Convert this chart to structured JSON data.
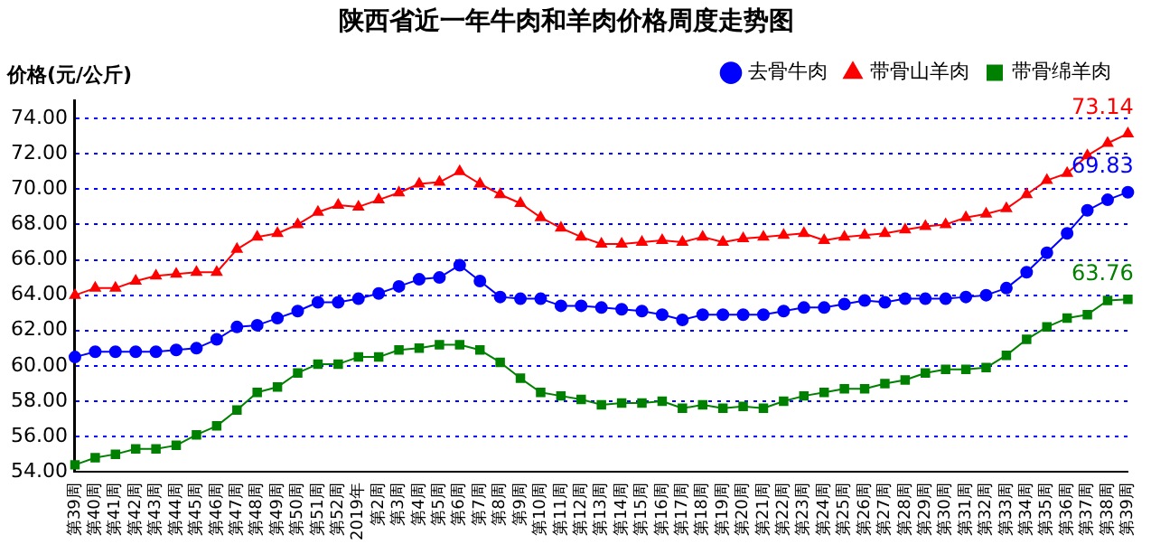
{
  "chart_data": {
    "type": "line",
    "title": "陕西省近一年牛肉和羊肉价格周度走势图",
    "ylabel": "价格(元/公斤)",
    "categories": [
      "第39周",
      "第40周",
      "第41周",
      "第42周",
      "第43周",
      "第44周",
      "第45周",
      "第46周",
      "第47周",
      "第48周",
      "第49周",
      "第50周",
      "第51周",
      "第52周",
      "2019年",
      "第2周",
      "第3周",
      "第4周",
      "第5周",
      "第6周",
      "第7周",
      "第8周",
      "第9周",
      "第10周",
      "第11周",
      "第12周",
      "第13周",
      "第14周",
      "第15周",
      "第16周",
      "第17周",
      "第18周",
      "第19周",
      "第20周",
      "第21周",
      "第22周",
      "第23周",
      "第24周",
      "第25周",
      "第26周",
      "第27周",
      "第28周",
      "第29周",
      "第30周",
      "第31周",
      "第32周",
      "第33周",
      "第34周",
      "第35周",
      "第36周",
      "第37周",
      "第38周",
      "第39周"
    ],
    "series": [
      {
        "name": "去骨牛肉",
        "color": "#0000ff",
        "marker": "circle",
        "values": [
          60.5,
          60.8,
          60.8,
          60.8,
          60.8,
          60.9,
          61.0,
          61.5,
          62.2,
          62.3,
          62.7,
          63.1,
          63.6,
          63.6,
          63.8,
          64.1,
          64.5,
          64.9,
          65.0,
          65.7,
          64.8,
          63.9,
          63.8,
          63.8,
          63.4,
          63.4,
          63.3,
          63.2,
          63.1,
          62.9,
          62.6,
          62.9,
          62.9,
          62.9,
          62.9,
          63.1,
          63.3,
          63.3,
          63.5,
          63.7,
          63.6,
          63.8,
          63.8,
          63.8,
          63.9,
          64.0,
          64.4,
          65.3,
          66.4,
          67.5,
          68.8,
          69.4,
          69.83
        ],
        "value_labels": [
          null,
          null,
          null,
          null,
          null,
          null,
          null,
          null,
          null,
          null,
          null,
          null,
          null,
          null,
          null,
          null,
          null,
          null,
          null,
          null,
          null,
          null,
          null,
          null,
          null,
          null,
          null,
          null,
          null,
          null,
          null,
          null,
          null,
          null,
          null,
          null,
          null,
          null,
          null,
          null,
          null,
          null,
          null,
          null,
          null,
          null,
          null,
          null,
          null,
          null,
          null,
          null,
          "69.83"
        ]
      },
      {
        "name": "带骨山羊肉",
        "color": "#ff0000",
        "marker": "triangle",
        "values": [
          64.0,
          64.4,
          64.4,
          64.8,
          65.1,
          65.2,
          65.3,
          65.3,
          66.6,
          67.3,
          67.5,
          68.0,
          68.7,
          69.1,
          69.0,
          69.4,
          69.8,
          70.3,
          70.4,
          71.0,
          70.3,
          69.7,
          69.2,
          68.4,
          67.8,
          67.3,
          66.9,
          66.9,
          67.0,
          67.1,
          67.0,
          67.3,
          67.0,
          67.2,
          67.3,
          67.4,
          67.5,
          67.1,
          67.3,
          67.4,
          67.5,
          67.7,
          67.9,
          68.0,
          68.4,
          68.6,
          68.9,
          69.7,
          70.5,
          70.9,
          71.9,
          72.6,
          73.14
        ],
        "value_labels": [
          null,
          null,
          null,
          null,
          null,
          null,
          null,
          null,
          null,
          null,
          null,
          null,
          null,
          null,
          null,
          null,
          null,
          null,
          null,
          null,
          null,
          null,
          null,
          null,
          null,
          null,
          null,
          null,
          null,
          null,
          null,
          null,
          null,
          null,
          null,
          null,
          null,
          null,
          null,
          null,
          null,
          null,
          null,
          null,
          null,
          null,
          null,
          null,
          null,
          null,
          null,
          null,
          "73.14"
        ]
      },
      {
        "name": "带骨绵羊肉",
        "color": "#008000",
        "marker": "square",
        "values": [
          54.4,
          54.8,
          55.0,
          55.3,
          55.3,
          55.5,
          56.1,
          56.6,
          57.5,
          58.5,
          58.8,
          59.6,
          60.1,
          60.1,
          60.5,
          60.5,
          60.9,
          61.0,
          61.2,
          61.2,
          60.9,
          60.2,
          59.3,
          58.5,
          58.3,
          58.1,
          57.8,
          57.9,
          57.9,
          58.0,
          57.6,
          57.8,
          57.6,
          57.7,
          57.6,
          58.0,
          58.3,
          58.5,
          58.7,
          58.7,
          59.0,
          59.2,
          59.6,
          59.8,
          59.8,
          59.9,
          60.6,
          61.5,
          62.2,
          62.7,
          62.9,
          63.7,
          63.76
        ],
        "value_labels": [
          null,
          null,
          null,
          null,
          null,
          null,
          null,
          null,
          null,
          null,
          null,
          null,
          null,
          null,
          null,
          null,
          null,
          null,
          null,
          null,
          null,
          null,
          null,
          null,
          null,
          null,
          null,
          null,
          null,
          null,
          null,
          null,
          null,
          null,
          null,
          null,
          null,
          null,
          null,
          null,
          null,
          null,
          null,
          null,
          null,
          null,
          null,
          null,
          null,
          null,
          null,
          null,
          "63.76"
        ]
      }
    ],
    "ylim": [
      54,
      75
    ],
    "yticks": [
      {
        "value": 54,
        "label": "54.00"
      },
      {
        "value": 56,
        "label": "56.00"
      },
      {
        "value": 58,
        "label": "58.00"
      },
      {
        "value": 60,
        "label": "60.00"
      },
      {
        "value": 62,
        "label": "62.00"
      },
      {
        "value": 64,
        "label": "64.00"
      },
      {
        "value": 66,
        "label": "66.00"
      },
      {
        "value": 68,
        "label": "68.00"
      },
      {
        "value": 70,
        "label": "70.00"
      },
      {
        "value": 72,
        "label": "72.00"
      },
      {
        "value": 74,
        "label": "74.00"
      }
    ],
    "grid": "y",
    "legend": "top right",
    "line_style": "solid"
  }
}
